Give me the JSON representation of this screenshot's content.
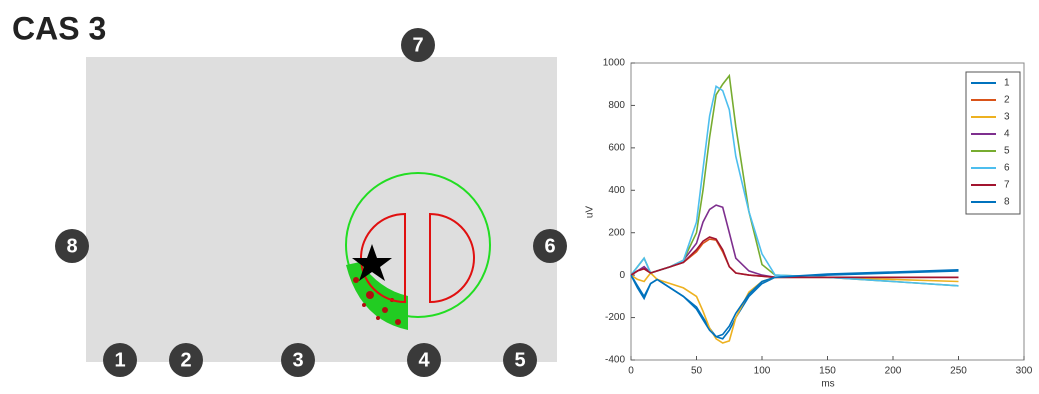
{
  "diagram": {
    "title": "CAS 3",
    "markers": [
      "1",
      "2",
      "3",
      "4",
      "5",
      "6",
      "7",
      "8"
    ]
  },
  "chart_data": {
    "type": "line",
    "xlabel": "ms",
    "ylabel": "uV",
    "x": [
      0,
      5,
      10,
      15,
      20,
      30,
      40,
      50,
      55,
      60,
      65,
      70,
      75,
      80,
      90,
      100,
      110,
      150,
      200,
      250
    ],
    "xlim": [
      0,
      300
    ],
    "xticks": [
      0,
      50,
      100,
      150,
      200,
      250,
      300
    ],
    "ylim": [
      -400,
      1000
    ],
    "yticks": [
      -400,
      -200,
      0,
      200,
      400,
      600,
      800,
      1000
    ],
    "legend": "upper-right",
    "series": [
      {
        "name": "1",
        "color": "#0072BD",
        "values": [
          0,
          -50,
          -100,
          -40,
          -20,
          -60,
          -100,
          -150,
          -200,
          -250,
          -290,
          -300,
          -260,
          -200,
          -100,
          -40,
          -10,
          0,
          10,
          20
        ]
      },
      {
        "name": "2",
        "color": "#D95319",
        "values": [
          0,
          20,
          30,
          10,
          20,
          40,
          60,
          110,
          150,
          170,
          165,
          110,
          40,
          10,
          0,
          -5,
          -10,
          -10,
          -10,
          -10
        ]
      },
      {
        "name": "3",
        "color": "#EDB120",
        "values": [
          0,
          -20,
          -30,
          10,
          -20,
          -40,
          -60,
          -100,
          -170,
          -250,
          -300,
          -320,
          -310,
          -200,
          -80,
          -30,
          -10,
          -10,
          -20,
          -30
        ]
      },
      {
        "name": "4",
        "color": "#7E2F8E",
        "values": [
          0,
          20,
          40,
          10,
          20,
          40,
          70,
          150,
          250,
          310,
          330,
          320,
          200,
          80,
          20,
          0,
          -10,
          -10,
          -10,
          -10
        ]
      },
      {
        "name": "5",
        "color": "#77AC30",
        "values": [
          0,
          40,
          80,
          10,
          20,
          40,
          70,
          200,
          400,
          650,
          850,
          900,
          940,
          700,
          300,
          50,
          0,
          -10,
          -30,
          -50
        ]
      },
      {
        "name": "6",
        "color": "#4DBEEE",
        "values": [
          0,
          40,
          80,
          10,
          20,
          40,
          70,
          250,
          500,
          750,
          890,
          870,
          780,
          560,
          300,
          100,
          0,
          -10,
          -30,
          -50
        ]
      },
      {
        "name": "7",
        "color": "#A2142F",
        "values": [
          0,
          20,
          30,
          10,
          20,
          40,
          60,
          120,
          160,
          180,
          170,
          120,
          40,
          10,
          0,
          -5,
          -10,
          -10,
          -10,
          -10
        ]
      },
      {
        "name": "8",
        "color": "#0072BD",
        "values": [
          0,
          -60,
          -110,
          -40,
          -20,
          -60,
          -100,
          -160,
          -210,
          -260,
          -290,
          -280,
          -240,
          -180,
          -90,
          -30,
          -10,
          5,
          15,
          25
        ]
      }
    ]
  }
}
